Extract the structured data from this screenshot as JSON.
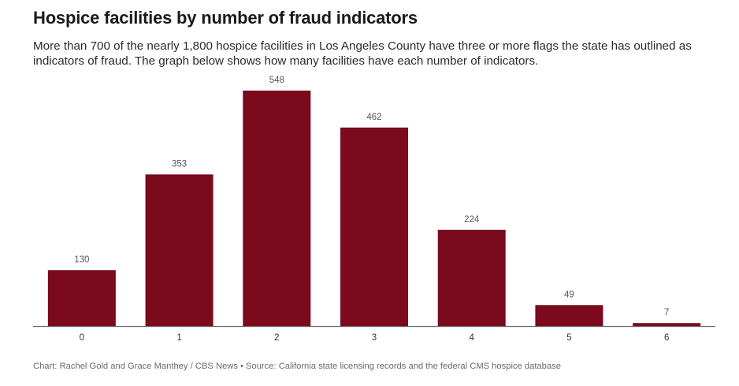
{
  "header": {
    "title": "Hospice facilities by number of fraud indicators",
    "subtitle": "More than 700 of the nearly 1,800 hospice facilities in Los Angeles County have three or more flags the state has outlined as indicators of fraud. The graph below shows how many facilities have each number of indicators."
  },
  "colors": {
    "bar": "#7a0a1c"
  },
  "chart_data": {
    "type": "bar",
    "title": "Hospice facilities by number of fraud indicators",
    "xlabel": "",
    "ylabel": "",
    "categories": [
      "0",
      "1",
      "2",
      "3",
      "4",
      "5",
      "6"
    ],
    "values": [
      130,
      353,
      548,
      462,
      224,
      49,
      7
    ],
    "ylim": [
      0,
      548
    ],
    "grid": false,
    "data_labels": true
  },
  "footer": {
    "credit": "Chart: Rachel Gold and Grace Manthey / CBS News • Source: California state licensing records and the federal CMS hospice database"
  }
}
